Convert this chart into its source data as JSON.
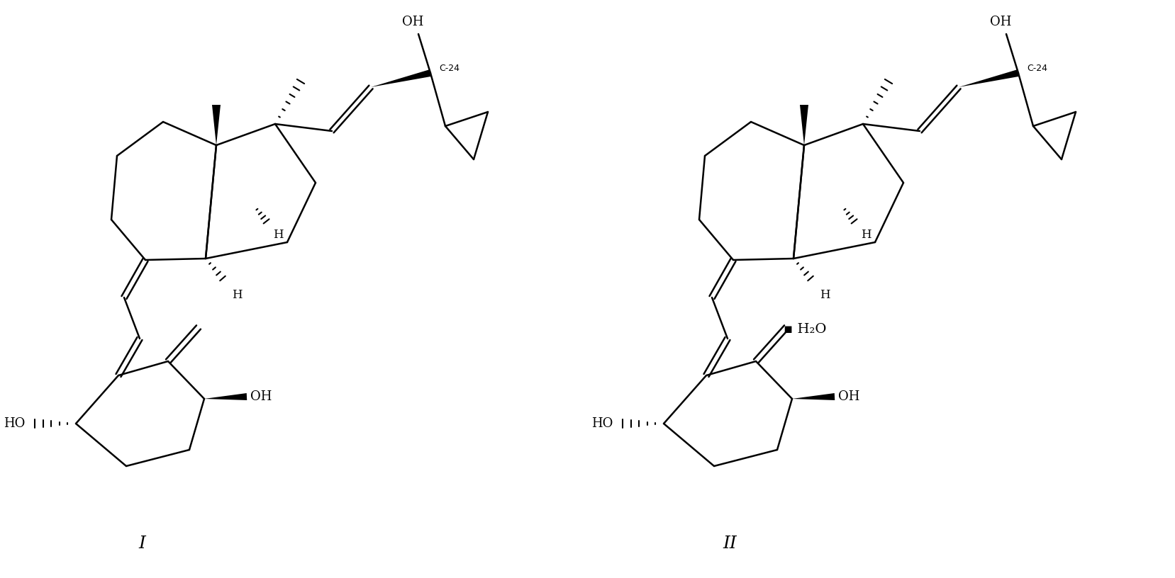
{
  "background_color": "#ffffff",
  "line_color": "#000000",
  "line_width": 1.8,
  "label_I": "I",
  "label_II": "II",
  "label_C24": "C-24",
  "label_OH": "OH",
  "label_HO": "HO",
  "label_H2O": "▪ H₂O",
  "figsize": [
    16.58,
    8.16
  ],
  "dpi": 100
}
